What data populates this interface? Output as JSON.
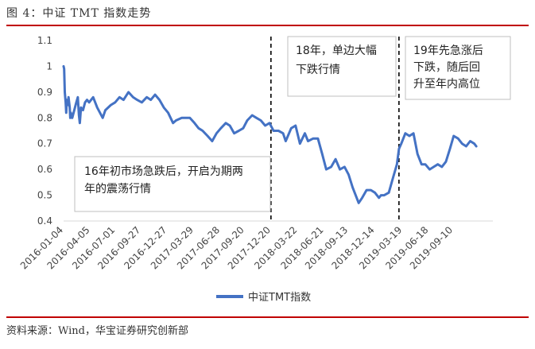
{
  "figure": {
    "title": "图 4：中证 TMT 指数走势",
    "source": "资料来源：Wind，华宝证券研究创新部"
  },
  "colors": {
    "line": "#4472c4",
    "accent": "#c00000",
    "axis_text": "#444444"
  },
  "chart_data": {
    "type": "line",
    "title": "",
    "xlabel": "",
    "ylabel": "",
    "ylim": [
      0.4,
      1.1
    ],
    "yticks": [
      "0.4",
      "0.5",
      "0.6",
      "0.7",
      "0.8",
      "0.9",
      "1",
      "1.1"
    ],
    "grid": false,
    "legend": "bottom-center",
    "xticks": [
      "2016-01-04",
      "2016-04-05",
      "2016-07-01",
      "2016-09-27",
      "2016-12-27",
      "2017-03-29",
      "2017-06-28",
      "2017-09-20",
      "2017-12-20",
      "2018-03-22",
      "2018-06-21",
      "2018-09-13",
      "2018-12-14",
      "2019-03-19",
      "2019-06-18",
      "2019-09-10"
    ],
    "series": [
      {
        "name": "中证TMT指数",
        "x": [
          "2016-01-04",
          "2016-01-06",
          "2016-01-08",
          "2016-01-11",
          "2016-01-13",
          "2016-01-15",
          "2016-01-19",
          "2016-01-21",
          "2016-01-25",
          "2016-01-27",
          "2016-01-29",
          "2016-02-03",
          "2016-02-17",
          "2016-02-22",
          "2016-02-26",
          "2016-02-29",
          "2016-03-04",
          "2016-03-11",
          "2016-03-18",
          "2016-03-25",
          "2016-04-01",
          "2016-04-15",
          "2016-04-29",
          "2016-05-18",
          "2016-05-27",
          "2016-06-15",
          "2016-06-30",
          "2016-07-15",
          "2016-07-29",
          "2016-08-15",
          "2016-08-31",
          "2016-09-14",
          "2016-09-30",
          "2016-10-17",
          "2016-10-31",
          "2016-11-15",
          "2016-11-30",
          "2016-12-15",
          "2016-12-30",
          "2017-01-16",
          "2017-01-26",
          "2017-02-15",
          "2017-02-28",
          "2017-03-15",
          "2017-03-31",
          "2017-04-14",
          "2017-04-28",
          "2017-05-15",
          "2017-05-31",
          "2017-06-15",
          "2017-06-30",
          "2017-07-17",
          "2017-07-31",
          "2017-08-15",
          "2017-08-31",
          "2017-09-15",
          "2017-09-29",
          "2017-10-16",
          "2017-10-31",
          "2017-11-15",
          "2017-11-30",
          "2017-12-15",
          "2017-12-29",
          "2018-01-15",
          "2018-01-31",
          "2018-02-09",
          "2018-02-28",
          "2018-03-15",
          "2018-03-30",
          "2018-04-16",
          "2018-04-27",
          "2018-05-15",
          "2018-05-31",
          "2018-06-15",
          "2018-06-29",
          "2018-07-16",
          "2018-07-31",
          "2018-08-15",
          "2018-08-31",
          "2018-09-14",
          "2018-09-28",
          "2018-10-19",
          "2018-10-31",
          "2018-11-15",
          "2018-11-30",
          "2018-12-14",
          "2018-12-28",
          "2019-01-04",
          "2019-01-15",
          "2019-01-31",
          "2019-02-15",
          "2019-02-28",
          "2019-03-07",
          "2019-03-15",
          "2019-03-29",
          "2019-04-12",
          "2019-04-26",
          "2019-05-10",
          "2019-05-24",
          "2019-06-06",
          "2019-06-21",
          "2019-07-05",
          "2019-07-19",
          "2019-08-02",
          "2019-08-16",
          "2019-08-30",
          "2019-09-12",
          "2019-09-27",
          "2019-10-11",
          "2019-10-25",
          "2019-11-08",
          "2019-11-22",
          "2019-11-29"
        ],
        "y": [
          1.0,
          0.99,
          0.9,
          0.86,
          0.82,
          0.87,
          0.85,
          0.88,
          0.84,
          0.8,
          0.82,
          0.8,
          0.86,
          0.88,
          0.81,
          0.78,
          0.84,
          0.83,
          0.86,
          0.87,
          0.86,
          0.88,
          0.84,
          0.8,
          0.83,
          0.85,
          0.86,
          0.88,
          0.87,
          0.9,
          0.88,
          0.87,
          0.86,
          0.88,
          0.87,
          0.89,
          0.87,
          0.84,
          0.82,
          0.78,
          0.79,
          0.8,
          0.8,
          0.8,
          0.78,
          0.76,
          0.75,
          0.73,
          0.71,
          0.74,
          0.76,
          0.78,
          0.77,
          0.74,
          0.75,
          0.76,
          0.79,
          0.81,
          0.8,
          0.79,
          0.77,
          0.78,
          0.75,
          0.75,
          0.74,
          0.71,
          0.76,
          0.77,
          0.7,
          0.74,
          0.71,
          0.72,
          0.72,
          0.66,
          0.6,
          0.61,
          0.64,
          0.6,
          0.61,
          0.58,
          0.53,
          0.47,
          0.49,
          0.52,
          0.52,
          0.51,
          0.49,
          0.5,
          0.5,
          0.51,
          0.57,
          0.62,
          0.68,
          0.7,
          0.74,
          0.73,
          0.74,
          0.66,
          0.62,
          0.62,
          0.6,
          0.61,
          0.62,
          0.61,
          0.63,
          0.68,
          0.73,
          0.72,
          0.7,
          0.69,
          0.71,
          0.7,
          0.69
        ]
      }
    ],
    "vlines": [
      "2017-12-20",
      "2019-03-07"
    ],
    "annotations": [
      {
        "lines": [
          "16年初市场急跌后，开启为期两",
          "年的震荡行情"
        ]
      },
      {
        "lines": [
          "18年，单边大幅",
          "下跌行情"
        ]
      },
      {
        "lines": [
          "19年先急涨后",
          "下跌，随后回",
          "升至年内高位"
        ]
      }
    ]
  }
}
